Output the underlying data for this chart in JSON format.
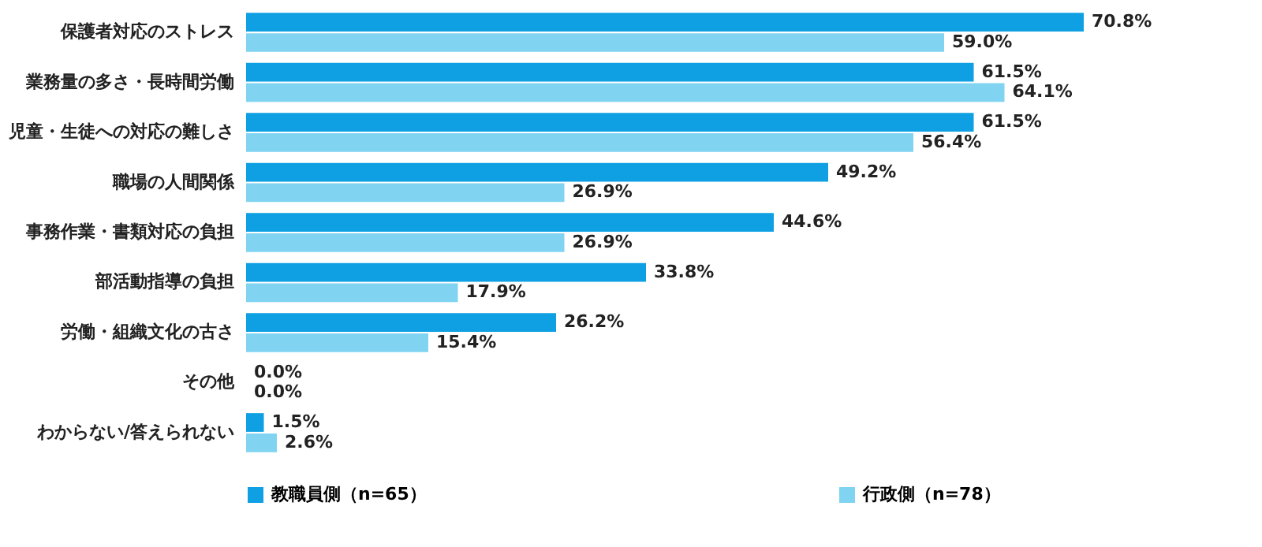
{
  "chart_data": {
    "type": "bar",
    "orientation": "horizontal",
    "categories": [
      "保護者対応のストレス",
      "業務量の多さ・長時間労働",
      "児童・生徒への対応の難しさ",
      "職場の人間関係",
      "事務作業・書類対応の負担",
      "部活動指導の負担",
      "労働・組織文化の古さ",
      "その他",
      "わからない/答えられない"
    ],
    "series": [
      {
        "name": "教職員側（n=65）",
        "color": "#0ea0e3",
        "values": [
          70.8,
          61.5,
          61.5,
          49.2,
          44.6,
          33.8,
          26.2,
          0.0,
          1.5
        ],
        "value_labels": [
          "70.8%",
          "61.5%",
          "61.5%",
          "49.2%",
          "44.6%",
          "33.8%",
          "26.2%",
          "0.0%",
          "1.5%"
        ]
      },
      {
        "name": "行政側（n=78）",
        "color": "#80d4f2",
        "values": [
          59.0,
          64.1,
          56.4,
          26.9,
          26.9,
          17.9,
          15.4,
          0.0,
          2.6
        ],
        "value_labels": [
          "59.0%",
          "64.1%",
          "56.4%",
          "26.9%",
          "26.9%",
          "17.9%",
          "15.4%",
          "0.0%",
          "2.6%"
        ]
      }
    ],
    "grid": false,
    "legend": "bottom"
  }
}
